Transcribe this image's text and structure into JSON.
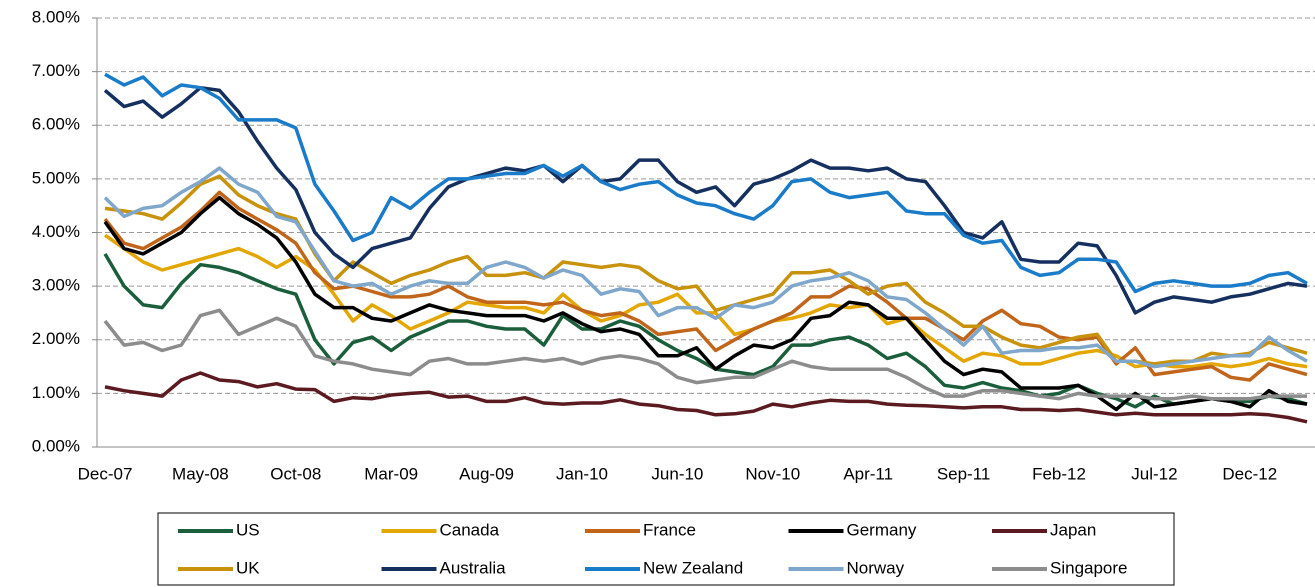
{
  "chart_data": {
    "type": "line",
    "categories": [
      "Dec-07",
      null,
      null,
      null,
      null,
      "May-08",
      null,
      null,
      null,
      null,
      "Oct-08",
      null,
      null,
      null,
      null,
      "Mar-09",
      null,
      null,
      null,
      null,
      "Aug-09",
      null,
      null,
      null,
      null,
      "Jan-10",
      null,
      null,
      null,
      null,
      "Jun-10",
      null,
      null,
      null,
      null,
      "Nov-10",
      null,
      null,
      null,
      null,
      "Apr-11",
      null,
      null,
      null,
      null,
      "Sep-11",
      null,
      null,
      null,
      null,
      "Feb-12",
      null,
      null,
      null,
      null,
      "Jul-12",
      null,
      null,
      null,
      null,
      "Dec-12",
      null,
      null,
      null
    ],
    "ylim": [
      0,
      8
    ],
    "yticks": [
      {
        "value": 0,
        "label": "0.00%"
      },
      {
        "value": 1,
        "label": "1.00%"
      },
      {
        "value": 2,
        "label": "2.00%"
      },
      {
        "value": 3,
        "label": "3.00%"
      },
      {
        "value": 4,
        "label": "4.00%"
      },
      {
        "value": 5,
        "label": "5.00%"
      },
      {
        "value": 6,
        "label": "6.00%"
      },
      {
        "value": 7,
        "label": "7.00%"
      },
      {
        "value": 8,
        "label": "8.00%"
      }
    ],
    "grid": true,
    "legend": "bottom",
    "series": [
      {
        "name": "US",
        "color": "#1b5e3b",
        "values": [
          3.6,
          3.0,
          2.65,
          2.6,
          3.05,
          3.4,
          3.35,
          3.25,
          3.1,
          2.95,
          2.85,
          2.0,
          1.55,
          1.95,
          2.05,
          1.8,
          2.05,
          2.2,
          2.35,
          2.35,
          2.25,
          2.2,
          2.2,
          1.9,
          2.45,
          2.2,
          2.2,
          2.35,
          2.25,
          2.0,
          1.8,
          1.65,
          1.45,
          1.4,
          1.35,
          1.5,
          1.9,
          1.9,
          2.0,
          2.05,
          1.9,
          1.65,
          1.75,
          1.5,
          1.15,
          1.1,
          1.2,
          1.1,
          1.05,
          0.95,
          1.0,
          1.15,
          1.0,
          0.9,
          0.75,
          0.95,
          0.8,
          0.85,
          0.9,
          0.85,
          0.85,
          0.95,
          0.9,
          0.8
        ]
      },
      {
        "name": "Canada",
        "color": "#e3a602",
        "values": [
          3.95,
          3.7,
          3.45,
          3.3,
          3.4,
          3.5,
          3.6,
          3.7,
          3.55,
          3.35,
          3.55,
          3.3,
          2.85,
          2.35,
          2.65,
          2.45,
          2.2,
          2.35,
          2.5,
          2.7,
          2.65,
          2.6,
          2.6,
          2.5,
          2.85,
          2.55,
          2.35,
          2.45,
          2.65,
          2.7,
          2.85,
          2.5,
          2.5,
          2.1,
          2.2,
          2.35,
          2.4,
          2.5,
          2.65,
          2.6,
          2.65,
          2.3,
          2.4,
          2.1,
          1.85,
          1.6,
          1.75,
          1.7,
          1.55,
          1.55,
          1.65,
          1.75,
          1.8,
          1.7,
          1.5,
          1.55,
          1.5,
          1.5,
          1.55,
          1.5,
          1.55,
          1.65,
          1.55,
          1.5
        ]
      },
      {
        "name": "France",
        "color": "#c0651a",
        "values": [
          4.25,
          3.8,
          3.7,
          3.9,
          4.1,
          4.4,
          4.75,
          4.45,
          4.25,
          4.05,
          3.8,
          3.25,
          2.95,
          3.0,
          2.9,
          2.8,
          2.8,
          2.85,
          3.0,
          2.8,
          2.7,
          2.7,
          2.7,
          2.65,
          2.7,
          2.55,
          2.45,
          2.5,
          2.35,
          2.1,
          2.15,
          2.2,
          1.8,
          2.0,
          2.2,
          2.35,
          2.5,
          2.8,
          2.8,
          3.0,
          2.95,
          2.7,
          2.4,
          2.4,
          2.2,
          2.0,
          2.35,
          2.55,
          2.3,
          2.25,
          2.05,
          2.0,
          2.05,
          1.55,
          1.85,
          1.35,
          1.4,
          1.45,
          1.5,
          1.3,
          1.25,
          1.55,
          1.45,
          1.35
        ]
      },
      {
        "name": "Germany",
        "color": "#000000",
        "values": [
          4.2,
          3.7,
          3.6,
          3.8,
          4.0,
          4.35,
          4.65,
          4.35,
          4.15,
          3.9,
          3.45,
          2.85,
          2.6,
          2.6,
          2.4,
          2.35,
          2.5,
          2.65,
          2.55,
          2.5,
          2.45,
          2.45,
          2.45,
          2.35,
          2.5,
          2.3,
          2.15,
          2.2,
          2.1,
          1.7,
          1.7,
          1.85,
          1.45,
          1.7,
          1.9,
          1.85,
          2.0,
          2.4,
          2.45,
          2.7,
          2.65,
          2.4,
          2.4,
          2.0,
          1.6,
          1.35,
          1.45,
          1.4,
          1.1,
          1.1,
          1.1,
          1.15,
          0.95,
          0.7,
          1.0,
          0.75,
          0.8,
          0.85,
          0.9,
          0.85,
          0.75,
          1.05,
          0.85,
          0.8
        ]
      },
      {
        "name": "Japan",
        "color": "#5a1a20",
        "values": [
          1.12,
          1.05,
          1.0,
          0.95,
          1.25,
          1.38,
          1.25,
          1.22,
          1.12,
          1.18,
          1.08,
          1.07,
          0.85,
          0.92,
          0.9,
          0.97,
          1.0,
          1.02,
          0.93,
          0.95,
          0.85,
          0.85,
          0.92,
          0.82,
          0.8,
          0.82,
          0.82,
          0.88,
          0.8,
          0.77,
          0.7,
          0.68,
          0.6,
          0.62,
          0.67,
          0.8,
          0.75,
          0.82,
          0.87,
          0.85,
          0.85,
          0.8,
          0.78,
          0.77,
          0.75,
          0.73,
          0.75,
          0.75,
          0.7,
          0.7,
          0.68,
          0.7,
          0.65,
          0.6,
          0.63,
          0.6,
          0.6,
          0.6,
          0.6,
          0.6,
          0.62,
          0.6,
          0.55,
          0.47
        ]
      },
      {
        "name": "UK",
        "color": "#c8920c",
        "values": [
          4.45,
          4.4,
          4.35,
          4.25,
          4.55,
          4.9,
          5.05,
          4.7,
          4.5,
          4.35,
          4.25,
          3.6,
          3.1,
          3.45,
          3.25,
          3.05,
          3.2,
          3.3,
          3.45,
          3.55,
          3.2,
          3.2,
          3.25,
          3.15,
          3.45,
          3.4,
          3.35,
          3.4,
          3.35,
          3.1,
          2.95,
          3.0,
          2.55,
          2.65,
          2.75,
          2.85,
          3.25,
          3.25,
          3.3,
          3.1,
          2.85,
          3.0,
          3.05,
          2.7,
          2.5,
          2.25,
          2.25,
          2.05,
          1.9,
          1.85,
          1.95,
          2.05,
          2.1,
          1.6,
          1.6,
          1.55,
          1.6,
          1.6,
          1.75,
          1.7,
          1.75,
          1.95,
          1.85,
          1.75
        ]
      },
      {
        "name": "Australia",
        "color": "#15305e",
        "values": [
          6.65,
          6.35,
          6.45,
          6.15,
          6.4,
          6.7,
          6.65,
          6.25,
          5.7,
          5.2,
          4.8,
          4.0,
          3.6,
          3.35,
          3.7,
          3.8,
          3.9,
          4.45,
          4.85,
          5.0,
          5.1,
          5.2,
          5.15,
          5.25,
          4.95,
          5.25,
          4.95,
          5.0,
          5.35,
          5.35,
          4.95,
          4.75,
          4.85,
          4.5,
          4.9,
          5.0,
          5.15,
          5.35,
          5.2,
          5.2,
          5.15,
          5.2,
          5.0,
          4.95,
          4.5,
          4.0,
          3.9,
          4.2,
          3.5,
          3.45,
          3.45,
          3.8,
          3.75,
          3.2,
          2.5,
          2.7,
          2.8,
          2.75,
          2.7,
          2.8,
          2.85,
          2.95,
          3.05,
          3.0
        ]
      },
      {
        "name": "New Zealand",
        "color": "#1a7bc9",
        "values": [
          6.95,
          6.75,
          6.9,
          6.55,
          6.75,
          6.7,
          6.5,
          6.1,
          6.1,
          6.1,
          5.95,
          4.9,
          4.4,
          3.85,
          4.0,
          4.65,
          4.45,
          4.75,
          5.0,
          5.0,
          5.05,
          5.1,
          5.1,
          5.25,
          5.05,
          5.25,
          4.95,
          4.8,
          4.9,
          4.95,
          4.7,
          4.55,
          4.5,
          4.35,
          4.25,
          4.5,
          4.95,
          5.0,
          4.75,
          4.65,
          4.7,
          4.75,
          4.4,
          4.35,
          4.35,
          3.95,
          3.8,
          3.85,
          3.35,
          3.2,
          3.25,
          3.5,
          3.5,
          3.45,
          2.9,
          3.05,
          3.1,
          3.05,
          3.0,
          3.0,
          3.05,
          3.2,
          3.25,
          3.05
        ]
      },
      {
        "name": "Norway",
        "color": "#7fa6cb",
        "values": [
          4.65,
          4.3,
          4.45,
          4.5,
          4.75,
          4.95,
          5.2,
          4.9,
          4.75,
          4.3,
          4.2,
          3.65,
          3.1,
          3.0,
          3.05,
          2.85,
          3.0,
          3.1,
          3.05,
          3.05,
          3.35,
          3.45,
          3.35,
          3.15,
          3.3,
          3.2,
          2.85,
          2.95,
          2.9,
          2.45,
          2.6,
          2.6,
          2.4,
          2.65,
          2.6,
          2.7,
          3.0,
          3.1,
          3.15,
          3.25,
          3.1,
          2.8,
          2.75,
          2.5,
          2.2,
          1.9,
          2.25,
          1.75,
          1.8,
          1.8,
          1.85,
          1.85,
          1.9,
          1.6,
          1.6,
          1.5,
          1.55,
          1.6,
          1.65,
          1.7,
          1.7,
          2.05,
          1.8,
          1.6
        ]
      },
      {
        "name": "Singapore",
        "color": "#8c8c8c",
        "values": [
          2.35,
          1.9,
          1.95,
          1.8,
          1.9,
          2.45,
          2.55,
          2.1,
          2.25,
          2.4,
          2.25,
          1.7,
          1.6,
          1.55,
          1.45,
          1.4,
          1.35,
          1.6,
          1.65,
          1.55,
          1.55,
          1.6,
          1.65,
          1.6,
          1.65,
          1.55,
          1.65,
          1.7,
          1.65,
          1.55,
          1.3,
          1.2,
          1.25,
          1.3,
          1.3,
          1.45,
          1.6,
          1.5,
          1.45,
          1.45,
          1.45,
          1.45,
          1.3,
          1.1,
          0.95,
          0.95,
          1.05,
          1.05,
          1.0,
          0.95,
          0.9,
          1.0,
          0.95,
          0.95,
          0.95,
          0.9,
          0.9,
          0.95,
          0.9,
          0.9,
          0.9,
          0.95,
          0.95,
          0.95
        ]
      }
    ]
  }
}
